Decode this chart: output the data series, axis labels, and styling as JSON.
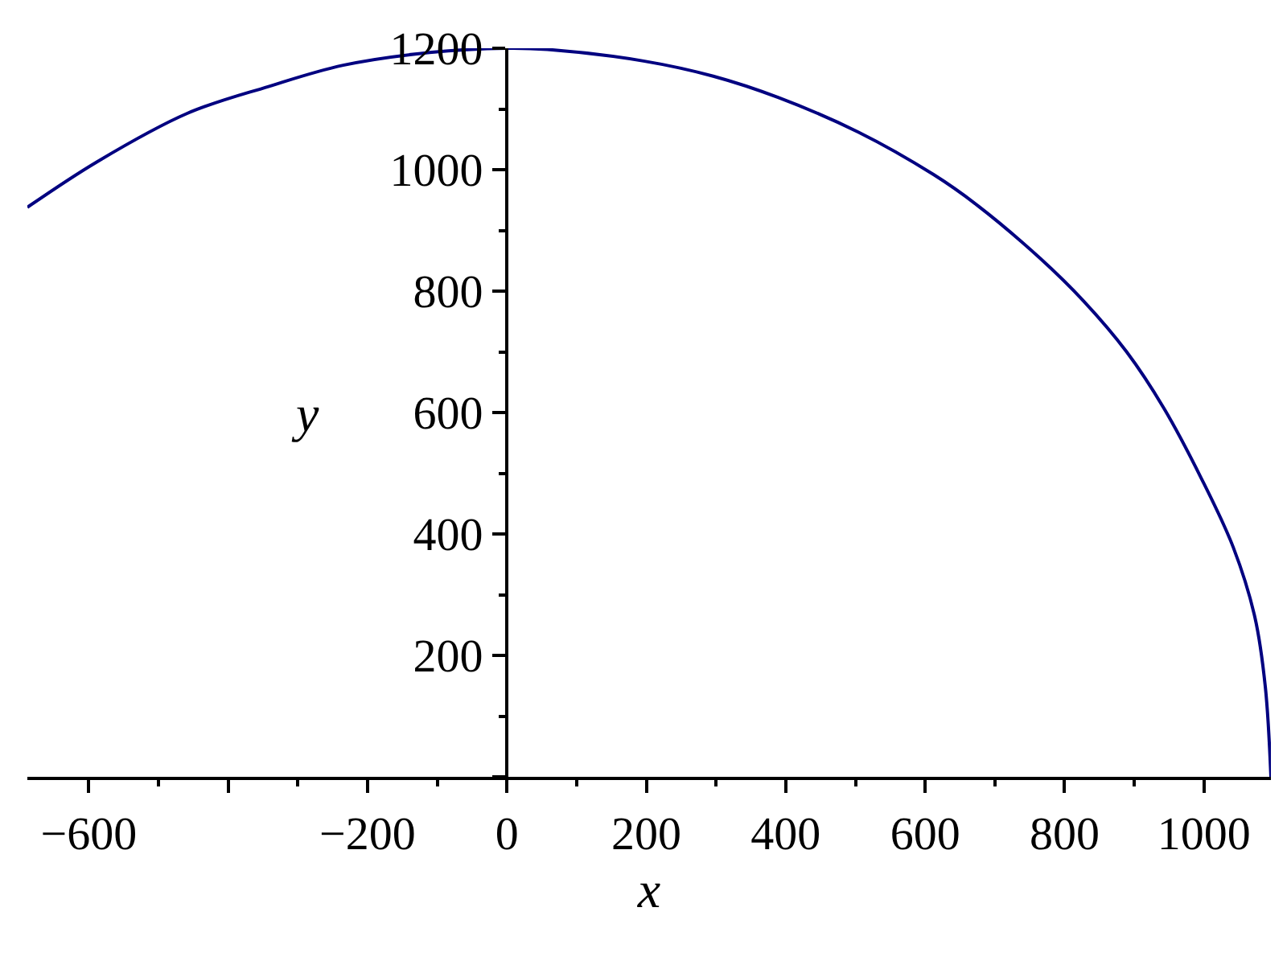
{
  "chart_data": {
    "type": "line",
    "xlabel": "x",
    "ylabel": "y",
    "x": [
      -688,
      -588,
      -458,
      -342,
      -235,
      -111,
      0,
      58,
      196,
      296,
      389,
      504,
      612,
      673,
      765,
      827,
      889,
      942,
      996,
      1042,
      1073,
      1088,
      1096
    ],
    "series": [
      {
        "color": "#000080",
        "values": [
          938,
          1013,
          1093,
          1137,
          1172,
          1193,
          1200,
          1198,
          1179,
          1154,
          1119,
          1062,
          992,
          943,
          854,
          784,
          700,
          608,
          492,
          378,
          263,
          148,
          0
        ]
      }
    ],
    "xlim": [
      -688,
      1096
    ],
    "ylim": [
      0,
      1200
    ],
    "xticks": [
      {
        "value": -600,
        "label": "−600"
      },
      {
        "value": -400,
        "label": null
      },
      {
        "value": -200,
        "label": "−200"
      },
      0,
      200,
      400,
      600,
      800,
      1000
    ],
    "yticks": [
      {
        "value": 0,
        "label": null
      },
      200,
      400,
      600,
      800,
      1000,
      1200
    ],
    "grid": false,
    "marker": "none",
    "line_style": "solid"
  }
}
